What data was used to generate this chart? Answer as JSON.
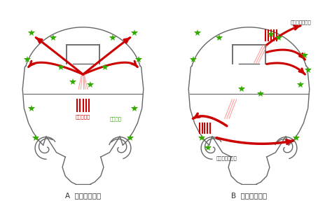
{
  "bg_color": "#ffffff",
  "outline_color": "#666666",
  "red_color": "#cc0000",
  "red_light_color": "#ff8888",
  "green_color": "#33aa00",
  "label_A": "A  全般てんかん",
  "label_B": "B  部分てんかん",
  "label_neocortex": "新皮質てんかん",
  "label_temporal": "側頭葉てんかん",
  "label_overactive": "過剰な活動",
  "label_neuron": "神経細胞"
}
